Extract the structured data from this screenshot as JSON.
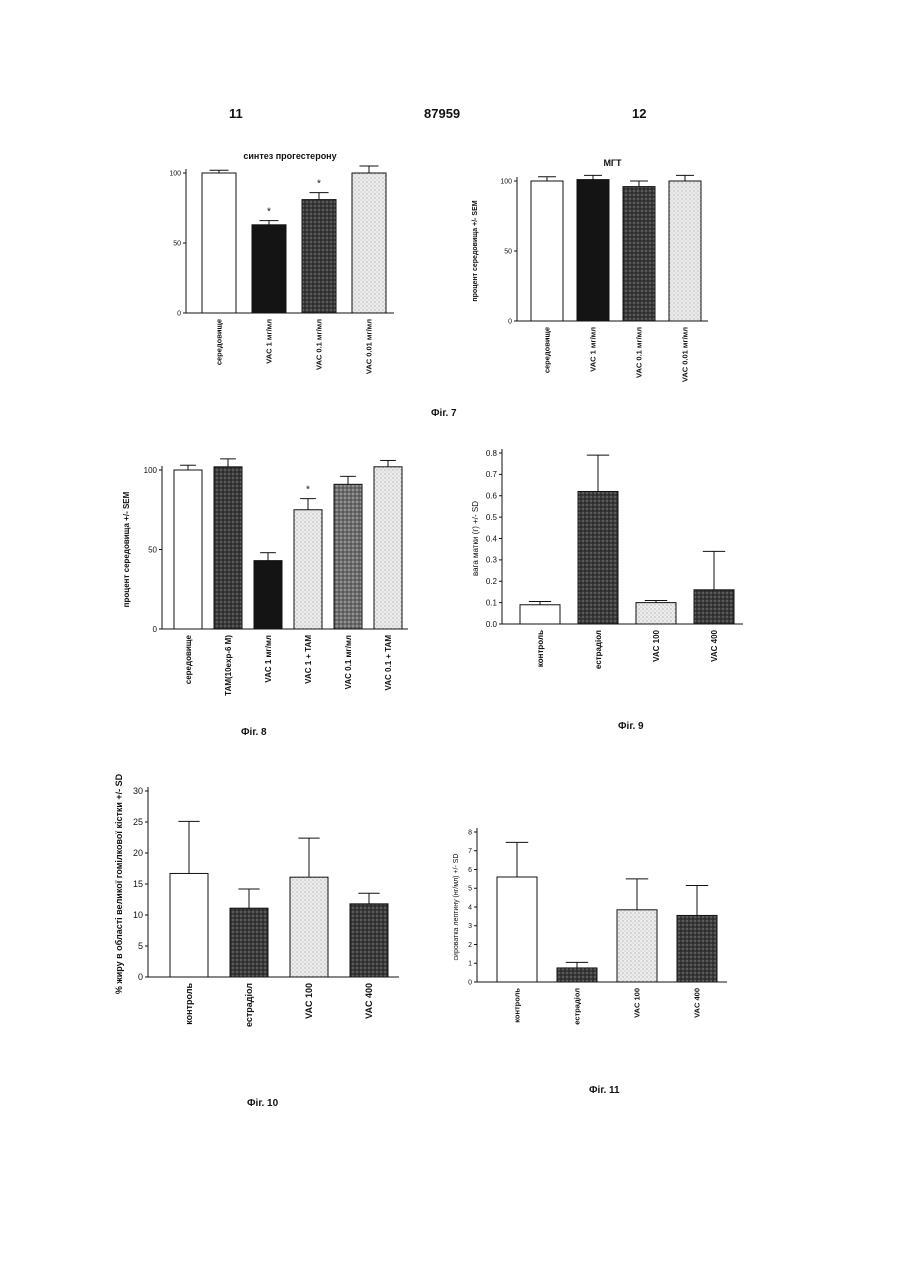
{
  "header": {
    "left": "11",
    "center": "87959",
    "right": "12"
  },
  "captions": {
    "fig7": "Фіг. 7",
    "fig8": "Фіг. 8",
    "fig9": "Фіг. 9",
    "fig10": "Фіг. 10",
    "fig11": "Фіг. 11"
  },
  "chart_data": [
    {
      "id": "fig7a",
      "type": "bar",
      "title": "синтез прогестерону",
      "ylabel": "",
      "ylim": [
        0,
        100
      ],
      "yticks": [
        0,
        50,
        100
      ],
      "categories": [
        "середовище",
        "VAC 1 мг/мл",
        "VAC 0.1 мг/мл",
        "VAC 0.01 мг/мл"
      ],
      "values": [
        100,
        63,
        81,
        100
      ],
      "errors": [
        2,
        3,
        5,
        5
      ],
      "annotations": [
        "",
        "*",
        "*",
        ""
      ],
      "patterns": [
        "white",
        "black",
        "dark",
        "light"
      ]
    },
    {
      "id": "fig7b",
      "type": "bar",
      "title": "МГТ",
      "ylabel": "процент середовища +/- SEM",
      "ylim": [
        0,
        100
      ],
      "yticks": [
        0,
        50,
        100
      ],
      "categories": [
        "середовище",
        "VAC 1 мг/мл",
        "VAC 0.1 мг/мл",
        "VAC 0.01 мг/мл"
      ],
      "values": [
        100,
        101,
        96,
        100
      ],
      "errors": [
        3,
        3,
        4,
        4
      ],
      "annotations": [
        "",
        "",
        "",
        ""
      ],
      "patterns": [
        "white",
        "black",
        "dark",
        "light"
      ]
    },
    {
      "id": "fig8",
      "type": "bar",
      "title": "",
      "ylabel": "процент середовища +/- SEM",
      "ylim": [
        0,
        100
      ],
      "yticks": [
        0,
        50,
        100
      ],
      "categories": [
        "середовище",
        "ТАМ(10exp-6 M)",
        "VAC 1 мг/мл",
        "VAC 1 + TAM",
        "VAC 0.1 мг/мл",
        "VAC 0.1 + TAM"
      ],
      "values": [
        100,
        102,
        43,
        75,
        91,
        102
      ],
      "errors": [
        3,
        5,
        5,
        7,
        5,
        4
      ],
      "annotations": [
        "",
        "",
        "",
        "*",
        "",
        ""
      ],
      "patterns": [
        "white",
        "dark",
        "black",
        "light",
        "mid",
        "light"
      ]
    },
    {
      "id": "fig9",
      "type": "bar",
      "title": "",
      "ylabel": "вага матки (г) +/- SD",
      "ylim": [
        0,
        0.8
      ],
      "yticks": [
        0.0,
        0.1,
        0.2,
        0.3,
        0.4,
        0.5,
        0.6,
        0.7,
        0.8
      ],
      "categories": [
        "контроль",
        "естрадіол",
        "VAC 100",
        "VAC 400"
      ],
      "values": [
        0.09,
        0.62,
        0.1,
        0.16
      ],
      "errors": [
        0.015,
        0.17,
        0.01,
        0.18
      ],
      "annotations": [
        "",
        "",
        "",
        ""
      ],
      "patterns": [
        "white",
        "dark",
        "light",
        "dark"
      ]
    },
    {
      "id": "fig10",
      "type": "bar",
      "title": "",
      "ylabel": "% жиру в області великої гомілкової кістки +/- SD",
      "ylim": [
        0,
        30
      ],
      "yticks": [
        0,
        5,
        10,
        15,
        20,
        25,
        30
      ],
      "categories": [
        "контроль",
        "естрадіол",
        "VAC 100",
        "VAC 400"
      ],
      "values": [
        16.7,
        11.1,
        16.1,
        11.8
      ],
      "errors": [
        8.4,
        3.1,
        6.3,
        1.7
      ],
      "annotations": [
        "",
        "",
        "",
        ""
      ],
      "patterns": [
        "white",
        "dark",
        "light",
        "dark"
      ]
    },
    {
      "id": "fig11",
      "type": "bar",
      "title": "",
      "ylabel": "сироватка лептину (нг/мл) +/- SD",
      "ylim": [
        0,
        8
      ],
      "yticks": [
        0,
        1,
        2,
        3,
        4,
        5,
        6,
        7,
        8
      ],
      "categories": [
        "контроль",
        "естрадіол",
        "VAC 100",
        "VAC 400"
      ],
      "values": [
        5.6,
        0.75,
        3.85,
        3.55
      ],
      "errors": [
        1.85,
        0.3,
        1.65,
        1.6
      ],
      "annotations": [
        "",
        "",
        "",
        ""
      ],
      "patterns": [
        "white",
        "dark",
        "light",
        "dark"
      ]
    }
  ]
}
